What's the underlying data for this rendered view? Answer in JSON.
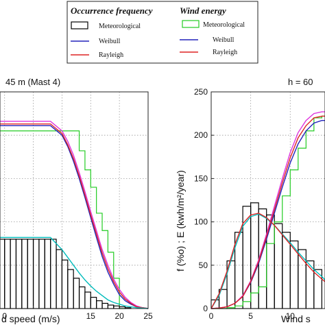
{
  "legend": {
    "occurrence_title": "Occurrence frequency",
    "energy_title": "Wind energy",
    "occurrence_items": [
      "Meteorological",
      "Weibull",
      "Rayleigh"
    ],
    "energy_items": [
      "Meteorological",
      "Weibull",
      "Rayleigh"
    ]
  },
  "colors": {
    "occurrence_meteorological": "#000000",
    "energy_meteorological": "#22cc22",
    "weibull": "#2222bb",
    "rayleigh": "#dd2222",
    "weibull_frequency": "#00bbbb",
    "rayleigh_energy": "#dd33dd",
    "grid": "#999999"
  },
  "chart_data": [
    {
      "type": "bar",
      "title": "45 m (Mast 4)",
      "xlabel": "d speed (m/s)",
      "ylabel": "",
      "xlim": [
        -0.8,
        25
      ],
      "ylim": [
        0,
        250
      ],
      "xticks": [
        0,
        5,
        10,
        15,
        20,
        25
      ],
      "xtick_labels": [
        "0",
        "",
        "",
        "15",
        "20",
        "25"
      ],
      "grid": true,
      "series": [
        {
          "kind": "step",
          "color_key": "energy_meteorological",
          "bins": [
            [
              -1,
              0
            ],
            [
              0,
              1
            ],
            [
              1,
              2
            ],
            [
              2,
              3
            ],
            [
              3,
              4
            ],
            [
              4,
              5
            ],
            [
              5,
              6
            ],
            [
              6,
              7
            ],
            [
              7,
              8
            ],
            [
              8,
              9
            ],
            [
              9,
              10
            ],
            [
              10,
              11
            ],
            [
              11,
              12
            ],
            [
              12,
              13
            ],
            [
              13,
              14
            ],
            [
              14,
              15
            ],
            [
              15,
              16
            ],
            [
              16,
              17
            ],
            [
              17,
              18
            ],
            [
              18,
              19
            ],
            [
              19,
              20
            ],
            [
              20,
              21
            ]
          ],
          "values": [
            205,
            205,
            205,
            205,
            205,
            205,
            205,
            205,
            205,
            205,
            205,
            205,
            205,
            205,
            182,
            160,
            140,
            110,
            90,
            65,
            35,
            0
          ]
        },
        {
          "kind": "bar",
          "color_key": "occurrence_meteorological",
          "bins": [
            [
              -1,
              0
            ],
            [
              0,
              1
            ],
            [
              1,
              2
            ],
            [
              2,
              3
            ],
            [
              3,
              4
            ],
            [
              4,
              5
            ],
            [
              5,
              6
            ],
            [
              6,
              7
            ],
            [
              7,
              8
            ],
            [
              8,
              9
            ],
            [
              9,
              10
            ],
            [
              10,
              11
            ],
            [
              11,
              12
            ],
            [
              12,
              13
            ],
            [
              13,
              14
            ],
            [
              14,
              15
            ],
            [
              15,
              16
            ],
            [
              16,
              17
            ],
            [
              17,
              18
            ],
            [
              18,
              19
            ],
            [
              19,
              20
            ],
            [
              20,
              21
            ],
            [
              21,
              22
            ]
          ],
          "values": [
            80,
            80,
            80,
            80,
            80,
            80,
            80,
            80,
            80,
            80,
            68,
            56,
            45,
            35,
            25,
            19,
            13,
            9,
            6,
            4,
            3,
            2,
            1
          ]
        },
        {
          "kind": "line",
          "color_key": "weibull",
          "x": [
            -0.8,
            0,
            2,
            4,
            6,
            8,
            10,
            11,
            12,
            13,
            14,
            15,
            16,
            17,
            18,
            19,
            20,
            21,
            22,
            23,
            24,
            25
          ],
          "y": [
            211,
            211,
            211,
            211,
            211,
            211,
            200,
            187,
            170,
            150,
            128,
            105,
            82,
            60,
            42,
            28,
            16,
            9,
            5,
            2,
            1,
            0
          ]
        },
        {
          "kind": "line",
          "color_key": "rayleigh_energy",
          "x": [
            -0.8,
            0,
            2,
            4,
            6,
            8,
            10,
            11,
            12,
            13,
            14,
            15,
            16,
            17,
            18,
            19,
            20,
            21,
            22,
            23,
            24,
            25
          ],
          "y": [
            216,
            216,
            216,
            216,
            216,
            216,
            205,
            193,
            177,
            157,
            135,
            112,
            90,
            68,
            50,
            34,
            22,
            13,
            7,
            3,
            1,
            0
          ]
        },
        {
          "kind": "line",
          "color_key": "rayleigh",
          "x": [
            -0.8,
            0,
            2,
            4,
            6,
            8,
            10,
            11,
            12,
            13,
            14,
            15,
            16,
            17,
            18,
            19,
            20,
            21,
            22,
            23,
            24,
            25
          ],
          "y": [
            213,
            213,
            213,
            213,
            213,
            213,
            202,
            189,
            173,
            153,
            131,
            108,
            86,
            64,
            46,
            31,
            19,
            11,
            6,
            2,
            1,
            0
          ]
        },
        {
          "kind": "line",
          "color_key": "weibull_frequency",
          "x": [
            -0.8,
            0,
            2,
            4,
            6,
            8,
            10,
            11,
            12,
            13,
            14,
            15,
            16,
            17,
            18,
            19,
            20,
            21,
            22,
            23,
            24,
            25
          ],
          "y": [
            82,
            82,
            82,
            82,
            82,
            82,
            68,
            59,
            50,
            41,
            33,
            26,
            20,
            15,
            10,
            7,
            5,
            3,
            2,
            1,
            0.5,
            0
          ]
        }
      ]
    },
    {
      "type": "bar",
      "title": "h = 60",
      "xlabel": "Wind s",
      "ylabel": "f (%o) ; E (kwh/m²/year)",
      "xlim": [
        0,
        14.4
      ],
      "ylim": [
        0,
        250
      ],
      "xticks": [
        0,
        5,
        10
      ],
      "xtick_labels": [
        "0",
        "5",
        "10"
      ],
      "yticks": [
        0,
        50,
        100,
        150,
        200,
        250
      ],
      "ytick_labels": [
        "0",
        "50",
        "100",
        "150",
        "200",
        "250"
      ],
      "grid": true,
      "series": [
        {
          "kind": "bar",
          "color_key": "occurrence_meteorological",
          "bins": [
            [
              0,
              1
            ],
            [
              1,
              2
            ],
            [
              2,
              3
            ],
            [
              3,
              4
            ],
            [
              4,
              5
            ],
            [
              5,
              6
            ],
            [
              6,
              7
            ],
            [
              7,
              8
            ],
            [
              8,
              9
            ],
            [
              9,
              10
            ],
            [
              10,
              11
            ],
            [
              11,
              12
            ],
            [
              12,
              13
            ],
            [
              13,
              14
            ]
          ],
          "values": [
            10,
            22,
            55,
            88,
            118,
            122,
            115,
            108,
            98,
            88,
            78,
            68,
            55,
            45
          ]
        },
        {
          "kind": "step",
          "color_key": "energy_meteorological",
          "bins": [
            [
              0,
              1
            ],
            [
              1,
              2
            ],
            [
              2,
              3
            ],
            [
              3,
              4
            ],
            [
              4,
              5
            ],
            [
              5,
              6
            ],
            [
              6,
              7
            ],
            [
              7,
              8
            ],
            [
              8,
              9
            ],
            [
              9,
              10
            ],
            [
              10,
              11
            ],
            [
              11,
              12
            ],
            [
              12,
              13
            ],
            [
              13,
              14
            ],
            [
              14,
              14.4
            ]
          ],
          "values": [
            0,
            0,
            1,
            3,
            8,
            18,
            25,
            75,
            100,
            130,
            160,
            185,
            205,
            220,
            222
          ]
        },
        {
          "kind": "line",
          "color_key": "weibull",
          "x": [
            0,
            1,
            2,
            3,
            4,
            5,
            6,
            7,
            8,
            9,
            10,
            11,
            12,
            13,
            14,
            14.4
          ],
          "y": [
            0,
            0.5,
            2,
            6,
            14,
            30,
            52,
            80,
            110,
            140,
            168,
            190,
            205,
            214,
            217,
            217
          ]
        },
        {
          "kind": "line",
          "color_key": "rayleigh_energy",
          "x": [
            0,
            1,
            2,
            3,
            4,
            5,
            6,
            7,
            8,
            9,
            10,
            11,
            12,
            13,
            14,
            14.4
          ],
          "y": [
            0,
            0.5,
            2,
            6,
            15,
            32,
            56,
            86,
            118,
            150,
            180,
            203,
            217,
            225,
            227,
            227
          ]
        },
        {
          "kind": "line",
          "color_key": "rayleigh",
          "x": [
            0,
            1,
            2,
            3,
            4,
            5,
            6,
            7,
            8,
            9,
            10,
            11,
            12,
            13,
            14,
            14.4
          ],
          "y": [
            0,
            0.5,
            2,
            6,
            14,
            31,
            54,
            83,
            114,
            145,
            174,
            197,
            211,
            220,
            222,
            222
          ]
        },
        {
          "kind": "line",
          "color_key": "weibull_frequency",
          "x": [
            0,
            1,
            2,
            3,
            4,
            5,
            6,
            7,
            8,
            9,
            10,
            11,
            12,
            13,
            14,
            14.4
          ],
          "y": [
            0,
            15,
            40,
            70,
            95,
            106,
            109,
            104,
            96,
            86,
            76,
            65,
            55,
            45,
            37,
            33
          ]
        },
        {
          "kind": "line",
          "color_key": "rayleigh",
          "x": [
            0,
            1,
            2,
            3,
            4,
            5,
            6,
            7,
            8,
            9,
            10,
            11,
            12,
            13,
            14,
            14.4
          ],
          "y": [
            0,
            17,
            43,
            74,
            98,
            108,
            110,
            105,
            96,
            85,
            74,
            63,
            52,
            42,
            34,
            31
          ]
        }
      ]
    }
  ]
}
